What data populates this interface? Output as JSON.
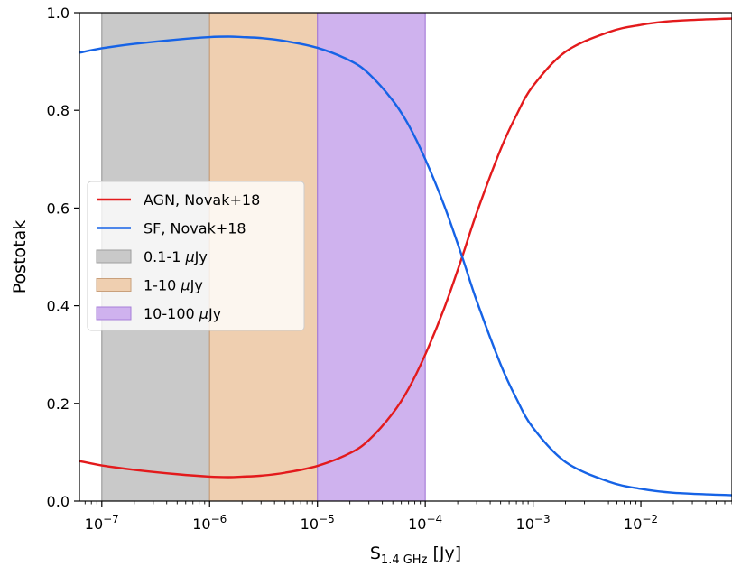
{
  "chart_data": {
    "type": "line",
    "xscale": "log",
    "xlabel_main": "S",
    "xlabel_sub": "1.4 GHz",
    "xlabel_unit": "[Jy]",
    "ylabel": "Postotak",
    "xlim": [
      6.2e-08,
      0.07
    ],
    "ylim": [
      0.0,
      1.0
    ],
    "grid": false,
    "legend_position": "center-left",
    "x_ticks": [
      {
        "value": 1e-07,
        "base": "10",
        "exp": "−7"
      },
      {
        "value": 1e-06,
        "base": "10",
        "exp": "−6"
      },
      {
        "value": 1e-05,
        "base": "10",
        "exp": "−5"
      },
      {
        "value": 0.0001,
        "base": "10",
        "exp": "−4"
      },
      {
        "value": 0.001,
        "base": "10",
        "exp": "−3"
      },
      {
        "value": 0.01,
        "base": "10",
        "exp": "−2"
      }
    ],
    "y_ticks": [
      {
        "value": 0.0,
        "label": "0.0"
      },
      {
        "value": 0.2,
        "label": "0.2"
      },
      {
        "value": 0.4,
        "label": "0.4"
      },
      {
        "value": 0.6,
        "label": "0.6"
      },
      {
        "value": 0.8,
        "label": "0.8"
      },
      {
        "value": 1.0,
        "label": "1.0"
      }
    ],
    "bands": [
      {
        "label_prefix": "0.1-1 ",
        "label_mu": "μ",
        "label_unit": "Jy",
        "x0": 1e-07,
        "x1": 1e-06,
        "color": "#c9c9c9",
        "edge": "#9e9e9e"
      },
      {
        "label_prefix": "1-10 ",
        "label_mu": "μ",
        "label_unit": "Jy",
        "x0": 1e-06,
        "x1": 1e-05,
        "color": "#efcfb0",
        "edge": "#c9a07c"
      },
      {
        "label_prefix": "10-100 ",
        "label_mu": "μ",
        "label_unit": "Jy",
        "x0": 1e-05,
        "x1": 0.0001,
        "color": "#cfb2ee",
        "edge": "#a77fd9"
      }
    ],
    "series": [
      {
        "name": "AGN, Novak+18",
        "color": "#e31a1c",
        "x": [
          6.2e-08,
          1e-07,
          2e-07,
          5e-07,
          1e-06,
          1.5e-06,
          2e-06,
          3e-06,
          5e-06,
          1e-05,
          2e-05,
          3e-05,
          5e-05,
          7e-05,
          0.0001,
          0.00015,
          0.00022,
          0.0003,
          0.0005,
          0.0007,
          0.001,
          0.002,
          0.005,
          0.01,
          0.02,
          0.07
        ],
        "values": [
          0.082,
          0.073,
          0.064,
          0.055,
          0.05,
          0.049,
          0.05,
          0.052,
          0.058,
          0.072,
          0.098,
          0.125,
          0.18,
          0.23,
          0.3,
          0.395,
          0.5,
          0.59,
          0.72,
          0.79,
          0.85,
          0.92,
          0.96,
          0.975,
          0.983,
          0.988
        ]
      },
      {
        "name": "SF, Novak+18",
        "color": "#1663e6",
        "x": [
          6.2e-08,
          1e-07,
          2e-07,
          5e-07,
          1e-06,
          1.5e-06,
          2e-06,
          3e-06,
          5e-06,
          1e-05,
          2e-05,
          3e-05,
          5e-05,
          7e-05,
          0.0001,
          0.00015,
          0.00022,
          0.0003,
          0.0005,
          0.0007,
          0.001,
          0.002,
          0.005,
          0.01,
          0.02,
          0.07
        ],
        "values": [
          0.918,
          0.927,
          0.936,
          0.945,
          0.95,
          0.951,
          0.95,
          0.948,
          0.942,
          0.928,
          0.902,
          0.875,
          0.82,
          0.77,
          0.7,
          0.605,
          0.5,
          0.41,
          0.28,
          0.21,
          0.15,
          0.08,
          0.04,
          0.025,
          0.017,
          0.012
        ]
      }
    ]
  }
}
